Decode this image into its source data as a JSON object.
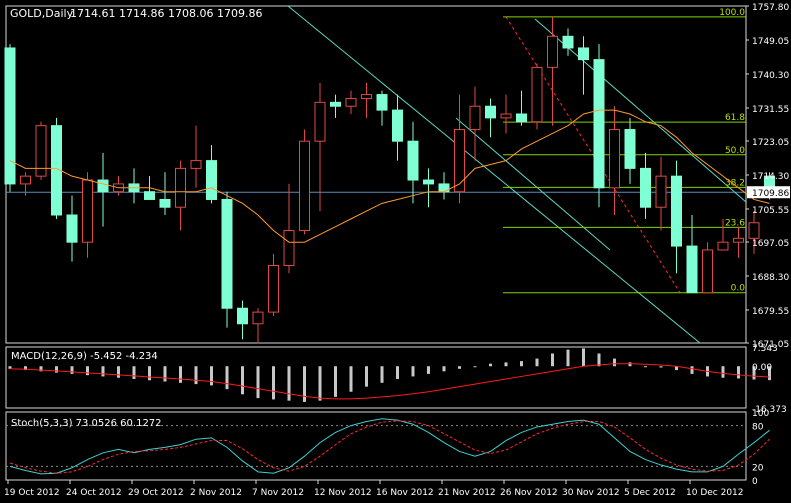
{
  "header": {
    "symbol": "GOLD,Daily",
    "ohlc": "1714.61 1714.86 1708.06 1709.86"
  },
  "colors": {
    "background": "#000000",
    "frame": "#d9d9d9",
    "bull_candle": "#e04848",
    "bear_candle": "#7fffd4",
    "ma": "#ff9a2e",
    "trend_lines": "#5fd4c4",
    "fib_lines": "#7fd600",
    "fib_text": "#b9e000",
    "price_line": "#5b8dbb",
    "macd_bars": "#c8c8c8",
    "macd_signal": "#ff1a1a",
    "stoch_main": "#3fd0d0",
    "stoch_signal": "#ff2a2a",
    "axis_text": "#ffffff"
  },
  "chart_data": [
    {
      "type": "candlestick",
      "title": "GOLD,Daily",
      "ylim": [
        1671.05,
        1757.8
      ],
      "y_ticks": [
        "1757.80",
        "1749.05",
        "1740.30",
        "1731.55",
        "1723.05",
        "1714.30",
        "1705.55",
        "1697.05",
        "1688.30",
        "1679.55",
        "1671.05"
      ],
      "current_price": "1709.86",
      "x_ticks": [
        "19 Oct 2012",
        "24 Oct 2012",
        "29 Oct 2012",
        "2 Nov 2012",
        "7 Nov 2012",
        "12 Nov 2012",
        "16 Nov 2012",
        "21 Nov 2012",
        "26 Nov 2012",
        "30 Nov 2012",
        "5 Dec 2012",
        "10 Dec 2012"
      ],
      "candles": [
        [
          1747,
          1748,
          1710,
          1712
        ],
        [
          1712,
          1715,
          1709,
          1714
        ],
        [
          1714,
          1728,
          1713,
          1727
        ],
        [
          1727,
          1729,
          1703,
          1704
        ],
        [
          1704,
          1709,
          1692,
          1697
        ],
        [
          1697,
          1715,
          1693,
          1713
        ],
        [
          1713,
          1720,
          1701,
          1710
        ],
        [
          1710,
          1714,
          1709,
          1712
        ],
        [
          1712,
          1716,
          1707,
          1710
        ],
        [
          1710,
          1714,
          1708,
          1708
        ],
        [
          1708,
          1715,
          1704,
          1706
        ],
        [
          1706,
          1718,
          1700,
          1716
        ],
        [
          1716,
          1727,
          1711,
          1718
        ],
        [
          1718,
          1722,
          1707,
          1708
        ],
        [
          1708,
          1710,
          1675,
          1680
        ],
        [
          1680,
          1682,
          1672,
          1676
        ],
        [
          1676,
          1680,
          1671,
          1679
        ],
        [
          1679,
          1694,
          1678,
          1691
        ],
        [
          1691,
          1712,
          1689,
          1700
        ],
        [
          1700,
          1726,
          1699,
          1723
        ],
        [
          1723,
          1738,
          1705,
          1733
        ],
        [
          1733,
          1735,
          1729,
          1732
        ],
        [
          1732,
          1736,
          1730,
          1734
        ],
        [
          1734,
          1738,
          1729,
          1735
        ],
        [
          1735,
          1736,
          1727,
          1731
        ],
        [
          1731,
          1735,
          1718,
          1723
        ],
        [
          1723,
          1728,
          1707,
          1713
        ],
        [
          1713,
          1716,
          1706,
          1712
        ],
        [
          1712,
          1715,
          1708,
          1710
        ],
        [
          1710,
          1735,
          1707,
          1726
        ],
        [
          1726,
          1737,
          1718,
          1732
        ],
        [
          1732,
          1734,
          1724,
          1729
        ],
        [
          1729,
          1735,
          1725,
          1730
        ],
        [
          1730,
          1736,
          1727,
          1728
        ],
        [
          1728,
          1743,
          1726,
          1742
        ],
        [
          1742,
          1755,
          1727,
          1750
        ],
        [
          1750,
          1752,
          1745,
          1747
        ],
        [
          1747,
          1750,
          1735,
          1744
        ],
        [
          1744,
          1748,
          1706,
          1711
        ],
        [
          1711,
          1732,
          1704,
          1726
        ],
        [
          1726,
          1729,
          1712,
          1716
        ],
        [
          1716,
          1720,
          1703,
          1706
        ],
        [
          1706,
          1719,
          1700,
          1714
        ],
        [
          1714,
          1718,
          1689,
          1696
        ],
        [
          1696,
          1704,
          1684,
          1684
        ],
        [
          1684,
          1697,
          1684,
          1695
        ],
        [
          1695,
          1703,
          1695,
          1697
        ],
        [
          1697,
          1701,
          1693,
          1698
        ],
        [
          1698,
          1705,
          1694,
          1702
        ],
        [
          1714,
          1715,
          1708,
          1710
        ]
      ],
      "moving_average": [
        1718,
        1716,
        1716,
        1716,
        1714,
        1713,
        1712,
        1711,
        1711,
        1711,
        1710,
        1710,
        1710,
        1711,
        1709,
        1707,
        1704,
        1700,
        1697,
        1697,
        1699,
        1701,
        1703,
        1705,
        1707,
        1708,
        1709,
        1710,
        1710,
        1712,
        1716,
        1717,
        1718,
        1721,
        1723,
        1725,
        1727,
        1730,
        1731,
        1731,
        1730,
        1728,
        1727,
        1724,
        1720,
        1717,
        1714,
        1711,
        1708,
        1707
      ],
      "fibonacci": {
        "high": 1755,
        "low": 1684,
        "levels": [
          {
            "label": "100.0",
            "value": 1755.0
          },
          {
            "label": "61.8",
            "value": 1727.9
          },
          {
            "label": "50.0",
            "value": 1719.5
          },
          {
            "label": "38.2",
            "value": 1711.1
          },
          {
            "label": "23.6",
            "value": 1700.8
          },
          {
            "label": "0.0",
            "value": 1684.0
          }
        ]
      }
    },
    {
      "type": "histogram",
      "title": "MACD(12,26,9) -5.452 -4.234",
      "ylim": [
        -16.373,
        7.543
      ],
      "y_ticks": [
        "7.543",
        "0.00",
        "-16.373"
      ],
      "macd": [
        -1.0,
        -1.5,
        -2.0,
        -2.5,
        -3.0,
        -3.5,
        -4.0,
        -4.5,
        -5.0,
        -5.5,
        -6.0,
        -6.5,
        -7.0,
        -7.5,
        -9.0,
        -11.0,
        -12.5,
        -13.0,
        -13.5,
        -14.0,
        -13.5,
        -12.0,
        -10.0,
        -8.0,
        -6.5,
        -5.0,
        -4.0,
        -3.0,
        -2.0,
        -1.0,
        0.0,
        1.0,
        1.5,
        2.0,
        3.0,
        5.0,
        6.5,
        7.0,
        5.0,
        3.0,
        1.5,
        0.0,
        -0.5,
        -1.5,
        -3.0,
        -4.0,
        -4.5,
        -4.8,
        -5.2,
        -5.45
      ],
      "signal": [
        -1.0,
        -1.2,
        -1.5,
        -1.8,
        -2.2,
        -2.6,
        -3.0,
        -3.4,
        -3.8,
        -4.2,
        -4.6,
        -5.0,
        -5.5,
        -6.0,
        -6.8,
        -7.8,
        -8.8,
        -9.8,
        -10.8,
        -11.8,
        -12.5,
        -12.8,
        -12.8,
        -12.5,
        -12.0,
        -11.5,
        -10.8,
        -10.0,
        -9.0,
        -8.0,
        -7.0,
        -6.0,
        -5.0,
        -4.0,
        -3.0,
        -2.0,
        -1.0,
        0.0,
        0.5,
        1.0,
        1.0,
        0.8,
        0.5,
        0.0,
        -1.0,
        -2.0,
        -2.8,
        -3.4,
        -3.9,
        -4.23
      ]
    },
    {
      "type": "line",
      "title": "Stoch(5,3,3) 73.0526 60.1272",
      "ylim": [
        0,
        100
      ],
      "y_ticks": [
        "100",
        "80",
        "20",
        "0"
      ],
      "levels": [
        80,
        20
      ],
      "k": [
        20,
        14,
        9,
        10,
        18,
        30,
        40,
        45,
        40,
        45,
        48,
        52,
        60,
        62,
        48,
        28,
        12,
        10,
        18,
        35,
        55,
        70,
        80,
        86,
        90,
        88,
        82,
        70,
        55,
        42,
        35,
        42,
        58,
        70,
        78,
        82,
        86,
        88,
        82,
        62,
        42,
        30,
        22,
        16,
        12,
        12,
        20,
        38,
        55,
        73.05
      ],
      "d": [
        25,
        18,
        13,
        10,
        12,
        20,
        30,
        38,
        42,
        43,
        45,
        48,
        53,
        58,
        58,
        46,
        30,
        18,
        13,
        20,
        35,
        52,
        68,
        78,
        85,
        87,
        86,
        80,
        68,
        56,
        44,
        39,
        44,
        56,
        68,
        76,
        82,
        86,
        86,
        78,
        62,
        45,
        32,
        22,
        16,
        13,
        14,
        22,
        38,
        60.13
      ]
    }
  ]
}
